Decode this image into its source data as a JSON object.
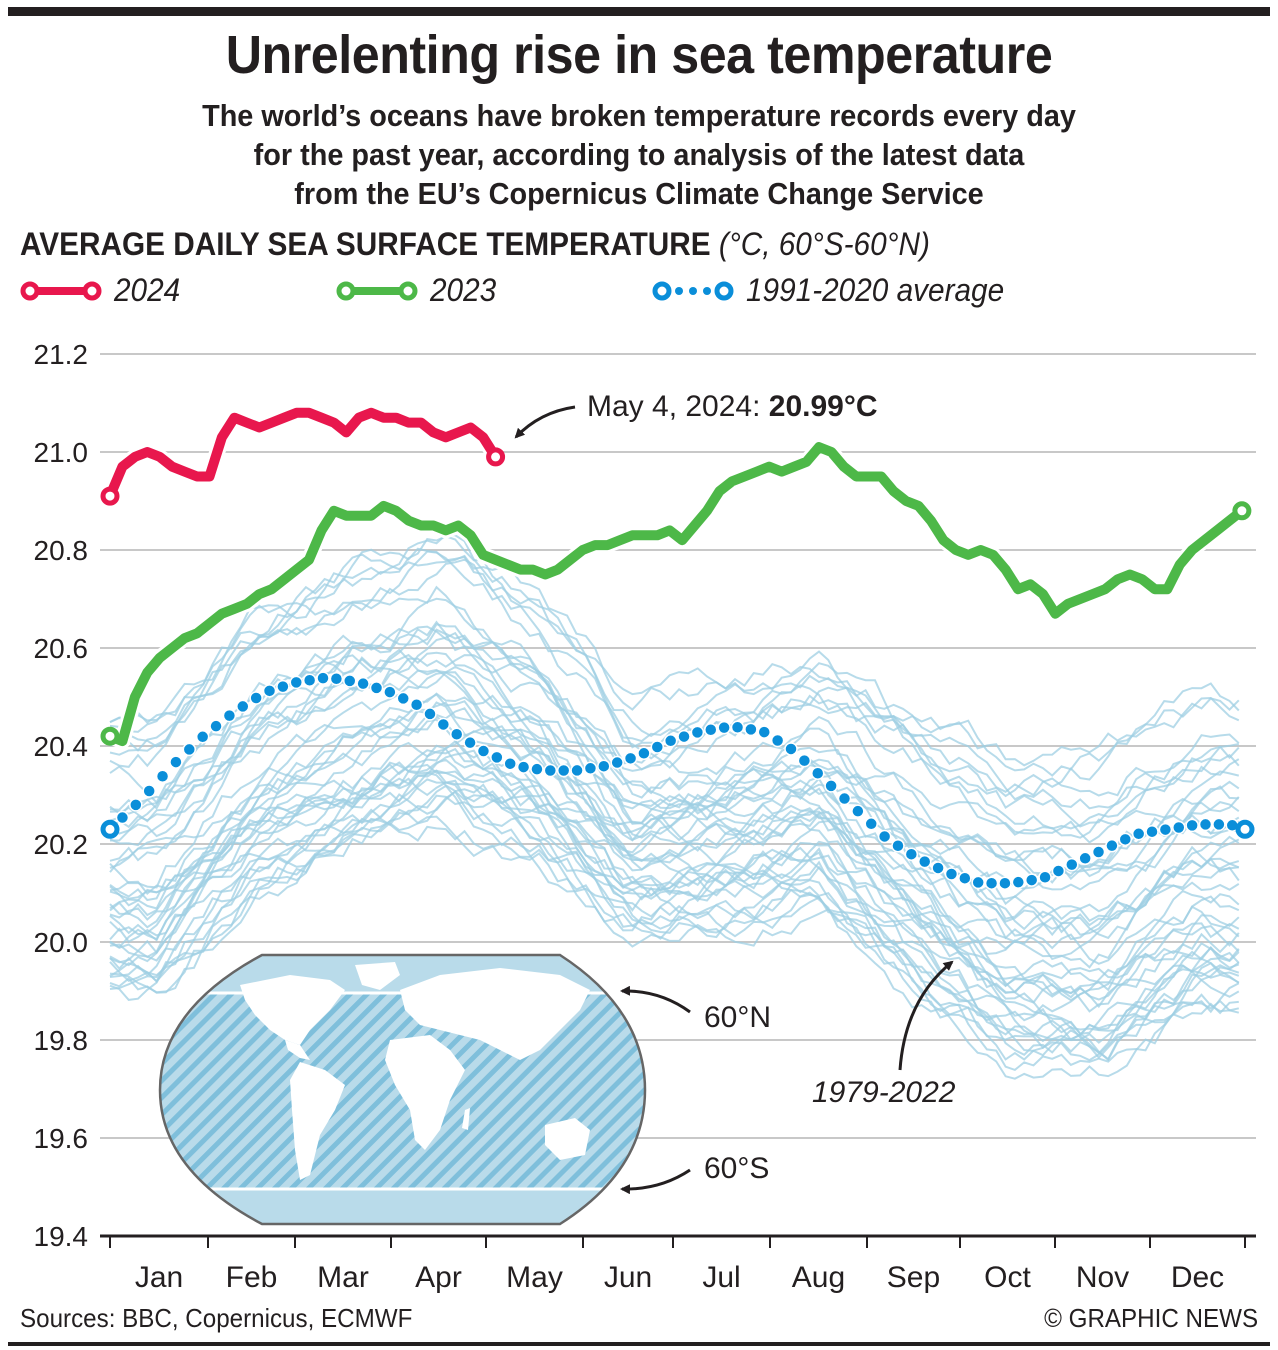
{
  "header": {
    "title": "Unrelenting rise in sea temperature",
    "subtitle_lines": [
      "The world’s oceans have broken temperature records every day",
      "for the past year, according to analysis of the latest data",
      "from the EU’s Copernicus Climate Change Service"
    ]
  },
  "chart_heading": {
    "main": "AVERAGE DAILY SEA SURFACE TEMPERATURE",
    "units": "(°C, 60°S-60°N)"
  },
  "legend": [
    {
      "label": "2024",
      "color": "#e8174d",
      "style": "solid"
    },
    {
      "label": "2023",
      "color": "#4db848",
      "style": "solid"
    },
    {
      "label": "1991-2020 average",
      "color": "#0a8ed9",
      "style": "dotted"
    }
  ],
  "annotations": {
    "latest_prefix": "May 4, 2024: ",
    "latest_value": "20.99°C",
    "historic_range": "1979-2022",
    "map_north": "60°N",
    "map_south": "60°S"
  },
  "footer": {
    "sources": "Sources: BBC, Copernicus, ECMWF",
    "credit": "© GRAPHIC NEWS"
  },
  "colors": {
    "series_2024": "#e8174d",
    "series_2023": "#4db848",
    "average": "#0a8ed9",
    "historic": "#9fcfe3",
    "grid": "#c8c8c8",
    "map_ocean": "#b9dbea",
    "map_hatch": "#7fbfdb"
  },
  "chart_data": {
    "type": "line",
    "title": "AVERAGE DAILY SEA SURFACE TEMPERATURE (°C, 60°S-60°N)",
    "xlabel": "",
    "ylabel": "°C",
    "ylim": [
      19.4,
      21.2
    ],
    "yticks": [
      21.2,
      21.0,
      20.8,
      20.6,
      20.4,
      20.2,
      20.0,
      19.8,
      19.6,
      19.4
    ],
    "ytick_labels": [
      "21.2",
      "21.0",
      "20.8",
      "20.6",
      "20.4",
      "20.2",
      "20.0",
      "19.8",
      "19.6",
      "19.4"
    ],
    "x_categories": [
      "Jan",
      "Feb",
      "Mar",
      "Apr",
      "May",
      "Jun",
      "Jul",
      "Aug",
      "Sep",
      "Oct",
      "Nov",
      "Dec"
    ],
    "x_unit": "day of year (0-365)",
    "grid": true,
    "legend_position": "top-left",
    "series": [
      {
        "name": "2024",
        "x": [
          0,
          4,
          8,
          12,
          16,
          20,
          24,
          28,
          32,
          36,
          40,
          44,
          48,
          52,
          56,
          60,
          64,
          68,
          72,
          76,
          80,
          84,
          88,
          92,
          96,
          100,
          104,
          108,
          112,
          116,
          120,
          124
        ],
        "values": [
          20.91,
          20.97,
          20.99,
          21.0,
          20.99,
          20.97,
          20.96,
          20.95,
          20.95,
          21.03,
          21.07,
          21.06,
          21.05,
          21.06,
          21.07,
          21.08,
          21.08,
          21.07,
          21.06,
          21.04,
          21.07,
          21.08,
          21.07,
          21.07,
          21.06,
          21.06,
          21.04,
          21.03,
          21.04,
          21.05,
          21.03,
          20.99
        ]
      },
      {
        "name": "2023",
        "x": [
          0,
          4,
          8,
          12,
          16,
          20,
          24,
          28,
          32,
          36,
          40,
          44,
          48,
          52,
          56,
          60,
          64,
          68,
          72,
          76,
          80,
          84,
          88,
          92,
          96,
          100,
          104,
          108,
          112,
          116,
          120,
          124,
          128,
          132,
          136,
          140,
          144,
          148,
          152,
          156,
          160,
          164,
          168,
          172,
          176,
          180,
          184,
          188,
          192,
          196,
          200,
          204,
          208,
          212,
          216,
          220,
          224,
          228,
          232,
          236,
          240,
          244,
          248,
          252,
          256,
          260,
          264,
          268,
          272,
          276,
          280,
          284,
          288,
          292,
          296,
          300,
          304,
          308,
          312,
          316,
          320,
          324,
          328,
          332,
          336,
          340,
          344,
          348,
          352,
          356,
          360,
          364
        ],
        "values": [
          20.42,
          20.41,
          20.5,
          20.55,
          20.58,
          20.6,
          20.62,
          20.63,
          20.65,
          20.67,
          20.68,
          20.69,
          20.71,
          20.72,
          20.74,
          20.76,
          20.78,
          20.84,
          20.88,
          20.87,
          20.87,
          20.87,
          20.89,
          20.88,
          20.86,
          20.85,
          20.85,
          20.84,
          20.85,
          20.83,
          20.79,
          20.78,
          20.77,
          20.76,
          20.76,
          20.75,
          20.76,
          20.78,
          20.8,
          20.81,
          20.81,
          20.82,
          20.83,
          20.83,
          20.83,
          20.84,
          20.82,
          20.85,
          20.88,
          20.92,
          20.94,
          20.95,
          20.96,
          20.97,
          20.96,
          20.97,
          20.98,
          21.01,
          21.0,
          20.97,
          20.95,
          20.95,
          20.95,
          20.92,
          20.9,
          20.89,
          20.86,
          20.82,
          20.8,
          20.79,
          20.8,
          20.79,
          20.76,
          20.72,
          20.73,
          20.71,
          20.67,
          20.69,
          20.7,
          20.71,
          20.72,
          20.74,
          20.75,
          20.74,
          20.72,
          20.72,
          20.77,
          20.8,
          20.82,
          20.84,
          20.86,
          20.88
        ]
      },
      {
        "name": "1991-2020 average",
        "x": [
          0,
          10,
          20,
          30,
          40,
          50,
          60,
          70,
          80,
          90,
          100,
          110,
          120,
          130,
          140,
          150,
          160,
          170,
          180,
          190,
          200,
          210,
          220,
          230,
          240,
          250,
          260,
          270,
          280,
          290,
          300,
          310,
          320,
          330,
          340,
          350,
          360,
          365
        ],
        "values": [
          20.23,
          20.29,
          20.36,
          20.42,
          20.47,
          20.51,
          20.53,
          20.54,
          20.53,
          20.51,
          20.48,
          20.43,
          20.39,
          20.36,
          20.35,
          20.35,
          20.36,
          20.38,
          20.41,
          20.43,
          20.44,
          20.43,
          20.39,
          20.33,
          20.27,
          20.21,
          20.17,
          20.14,
          20.12,
          20.12,
          20.13,
          20.16,
          20.19,
          20.22,
          20.23,
          20.24,
          20.24,
          20.23
        ]
      }
    ],
    "background_series": {
      "name": "1979-2022",
      "count": 44,
      "note": "individual years drawn as thin light-blue lines; values approximated",
      "envelope_low": [
        19.8,
        20.0,
        20.1,
        20.15,
        20.1,
        19.95,
        19.95,
        20.0,
        19.8,
        19.65,
        19.6,
        19.75
      ],
      "envelope_high": [
        20.55,
        20.75,
        20.85,
        20.95,
        20.8,
        20.55,
        20.6,
        20.65,
        20.55,
        20.45,
        20.5,
        20.6
      ]
    },
    "annotations": [
      {
        "text": "May 4, 2024: 20.99°C",
        "x": 124,
        "y": 20.99
      },
      {
        "text": "1979-2022",
        "target": "historic lines"
      }
    ]
  }
}
